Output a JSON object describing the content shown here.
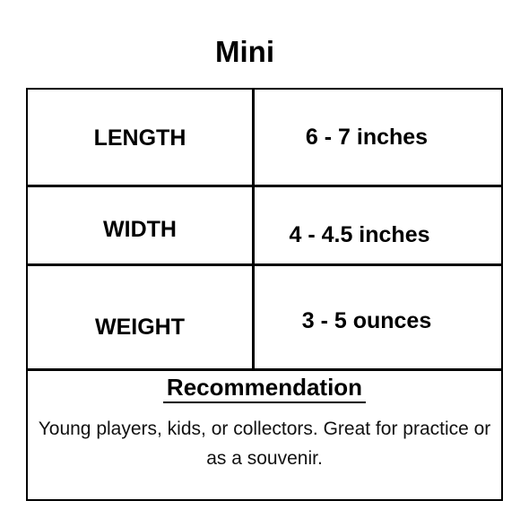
{
  "title": "Mini",
  "rows": [
    {
      "label": "LENGTH",
      "value": "6 - 7 inches"
    },
    {
      "label": "WIDTH",
      "value": "4 - 4.5 inches"
    },
    {
      "label": "WEIGHT",
      "value": "3 - 5 ounces"
    }
  ],
  "recommendation": {
    "heading": "Recommendation",
    "text": "Young players, kids, or collectors. Great for practice or as a souvenir."
  }
}
